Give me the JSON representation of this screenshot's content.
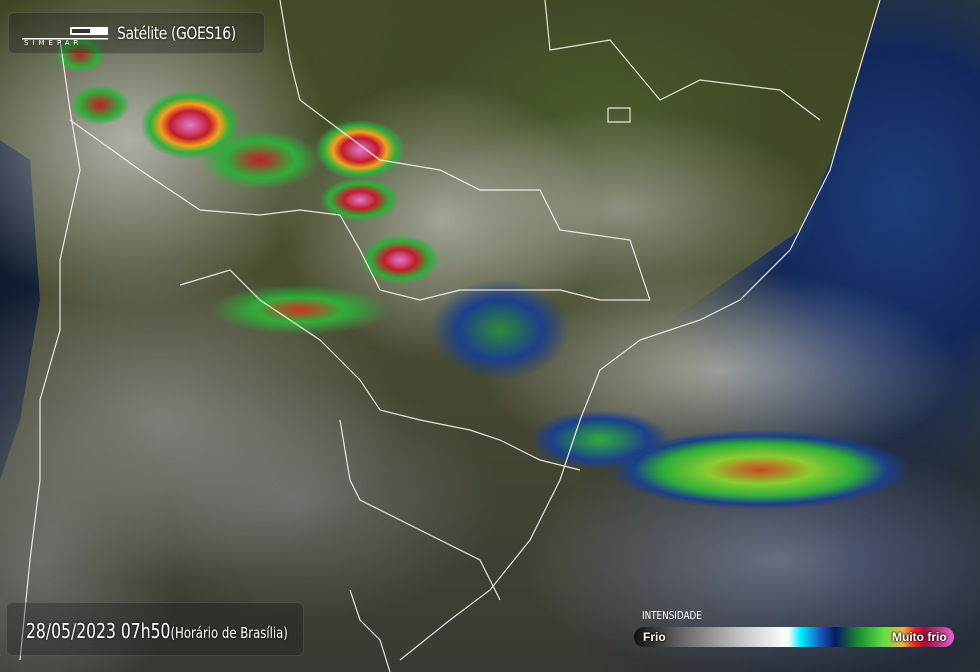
{
  "header": {
    "logo_text": "SIMEPAR",
    "title": "Satélite (GOES16)"
  },
  "timestamp": {
    "datetime": "28/05/2023 07h50",
    "timezone": "(Horário de Brasília)"
  },
  "legend": {
    "title": "INTENSIDADE",
    "min_label": "Frio",
    "max_label": "Muito frio",
    "colors": [
      "#111111",
      "#cccccc",
      "#ffffff",
      "#00f0ff",
      "#1a5cc0",
      "#0a1a60",
      "#1a8a30",
      "#60e040",
      "#f0b040",
      "#e02020",
      "#e060d0"
    ]
  }
}
